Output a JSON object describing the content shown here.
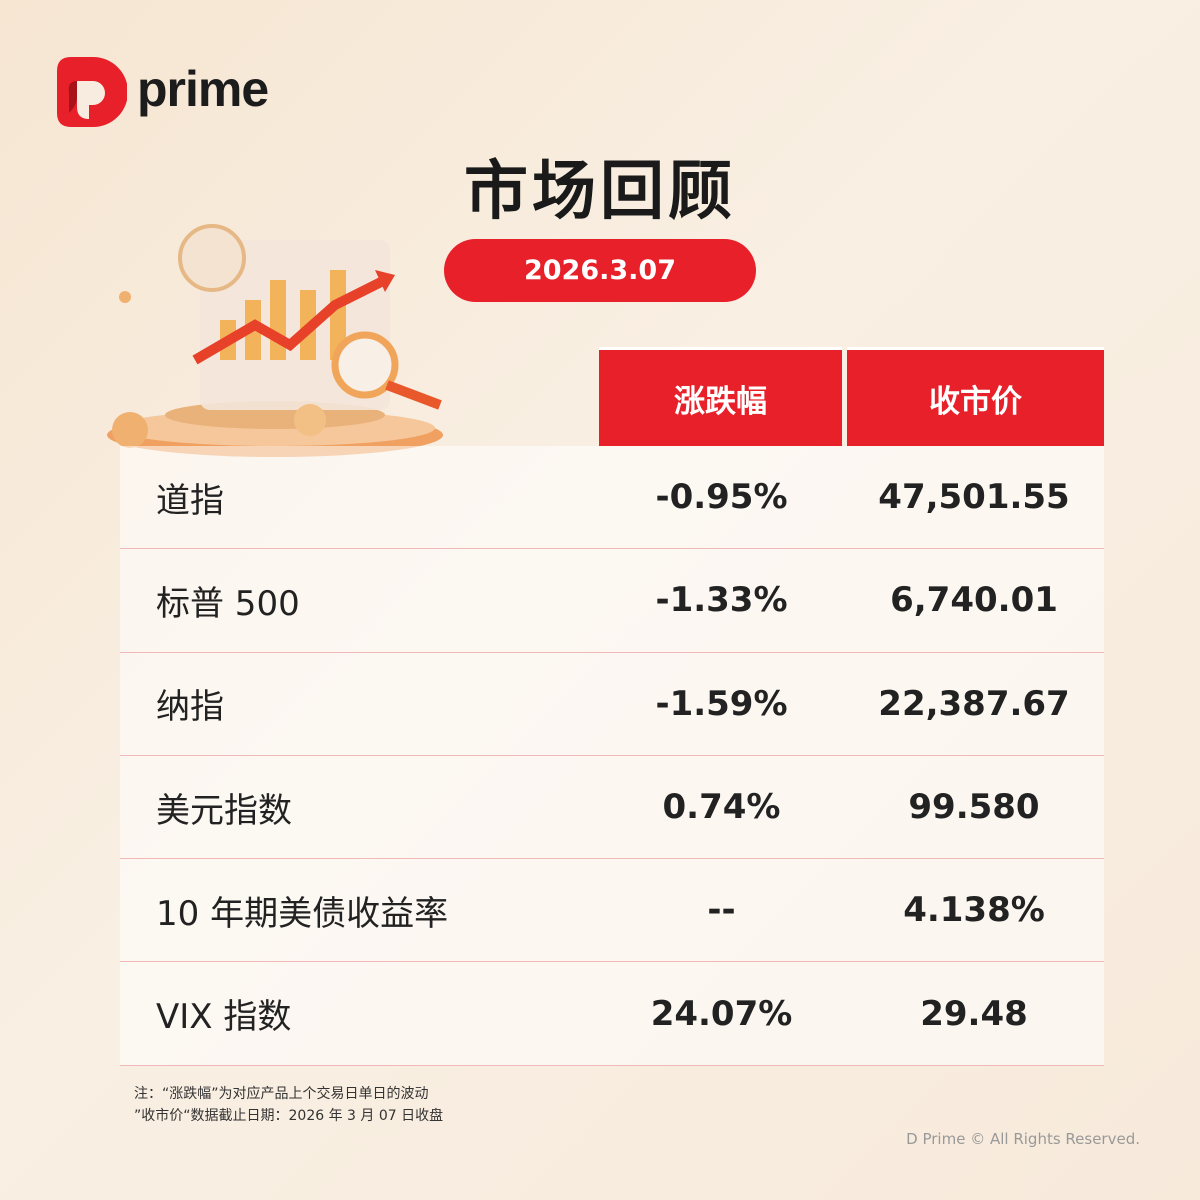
{
  "brand": {
    "name": "prime",
    "accent": "#e8202a"
  },
  "title": "市场回顾",
  "date": "2026.3.07",
  "table": {
    "headers": [
      "涨跌幅",
      "收市价"
    ],
    "rows": [
      {
        "name": "道指",
        "change": "-0.95%",
        "close": "47,501.55"
      },
      {
        "name": "标普 500",
        "change": "-1.33%",
        "close": "6,740.01"
      },
      {
        "name": "纳指",
        "change": "-1.59%",
        "close": "22,387.67"
      },
      {
        "name": "美元指数",
        "change": "0.74%",
        "close": "99.580"
      },
      {
        "name": "10 年期美债收益率",
        "change": "--",
        "close": "4.138%"
      },
      {
        "name": "VIX 指数",
        "change": "24.07%",
        "close": "29.48"
      }
    ]
  },
  "notes": [
    "注：“涨跌幅”为对应产品上个交易日单日的波动",
    "”收市价“数据截止日期：2026 年 3 月 07 日收盘"
  ],
  "copyright": "D Prime © All Rights Reserved."
}
